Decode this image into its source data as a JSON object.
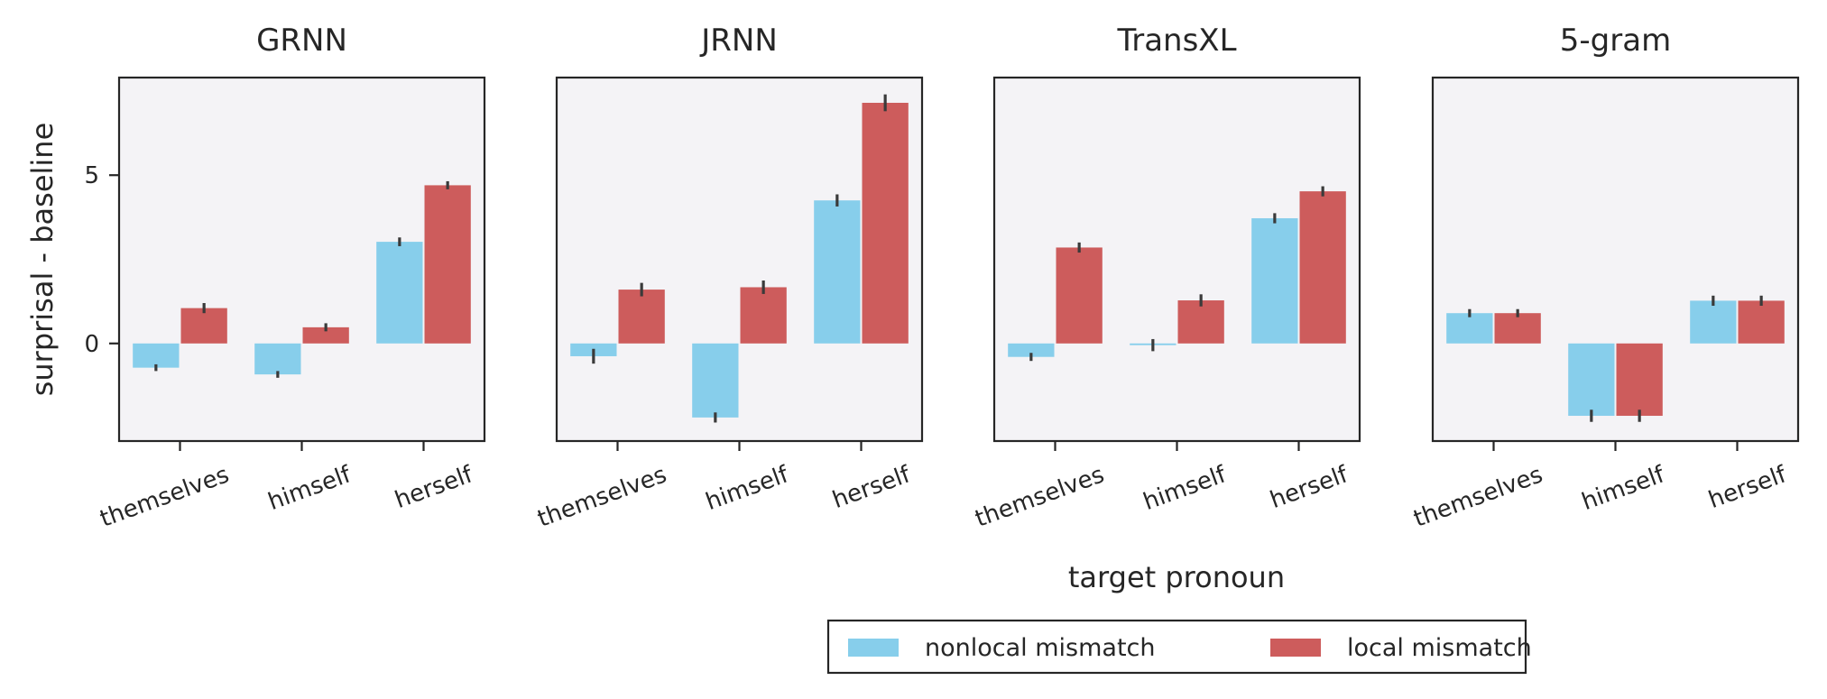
{
  "chart_data": {
    "type": "bar",
    "ylabel": "surprisal - baseline",
    "xlabel": "target pronoun",
    "ylim": [
      -2.9,
      7.9
    ],
    "yticks": [
      0,
      5
    ],
    "categories": [
      "themselves",
      "himself",
      "herself"
    ],
    "legend": {
      "placement": "bottom-center",
      "entries": [
        {
          "name": "nonlocal mismatch",
          "color": "#87CEEB"
        },
        {
          "name": "local mismatch",
          "color": "#CD5C5C"
        }
      ]
    },
    "panels": [
      {
        "title": "GRNN",
        "series": [
          {
            "name": "nonlocal mismatch",
            "color": "#87CEEB",
            "values": [
              -0.72,
              -0.92,
              3.02
            ],
            "err": [
              0.1,
              0.1,
              0.13
            ]
          },
          {
            "name": "local mismatch",
            "color": "#CD5C5C",
            "values": [
              1.05,
              0.48,
              4.7
            ],
            "err": [
              0.15,
              0.12,
              0.12
            ]
          }
        ]
      },
      {
        "title": "JRNN",
        "series": [
          {
            "name": "nonlocal mismatch",
            "color": "#87CEEB",
            "values": [
              -0.38,
              -2.2,
              4.25
            ],
            "err": [
              0.22,
              0.15,
              0.18
            ]
          },
          {
            "name": "local mismatch",
            "color": "#CD5C5C",
            "values": [
              1.6,
              1.67,
              7.15
            ],
            "err": [
              0.2,
              0.2,
              0.25
            ]
          }
        ]
      },
      {
        "title": "TransXL",
        "series": [
          {
            "name": "nonlocal mismatch",
            "color": "#87CEEB",
            "values": [
              -0.4,
              -0.05,
              3.72
            ],
            "err": [
              0.12,
              0.18,
              0.15
            ]
          },
          {
            "name": "local mismatch",
            "color": "#CD5C5C",
            "values": [
              2.85,
              1.28,
              4.52
            ],
            "err": [
              0.15,
              0.18,
              0.15
            ]
          }
        ]
      },
      {
        "title": "5-gram",
        "series": [
          {
            "name": "nonlocal mismatch",
            "color": "#87CEEB",
            "values": [
              0.9,
              -2.15,
              1.27
            ],
            "err": [
              0.12,
              0.18,
              0.15
            ]
          },
          {
            "name": "local mismatch",
            "color": "#CD5C5C",
            "values": [
              0.9,
              -2.15,
              1.27
            ],
            "err": [
              0.12,
              0.18,
              0.15
            ]
          }
        ]
      }
    ]
  }
}
